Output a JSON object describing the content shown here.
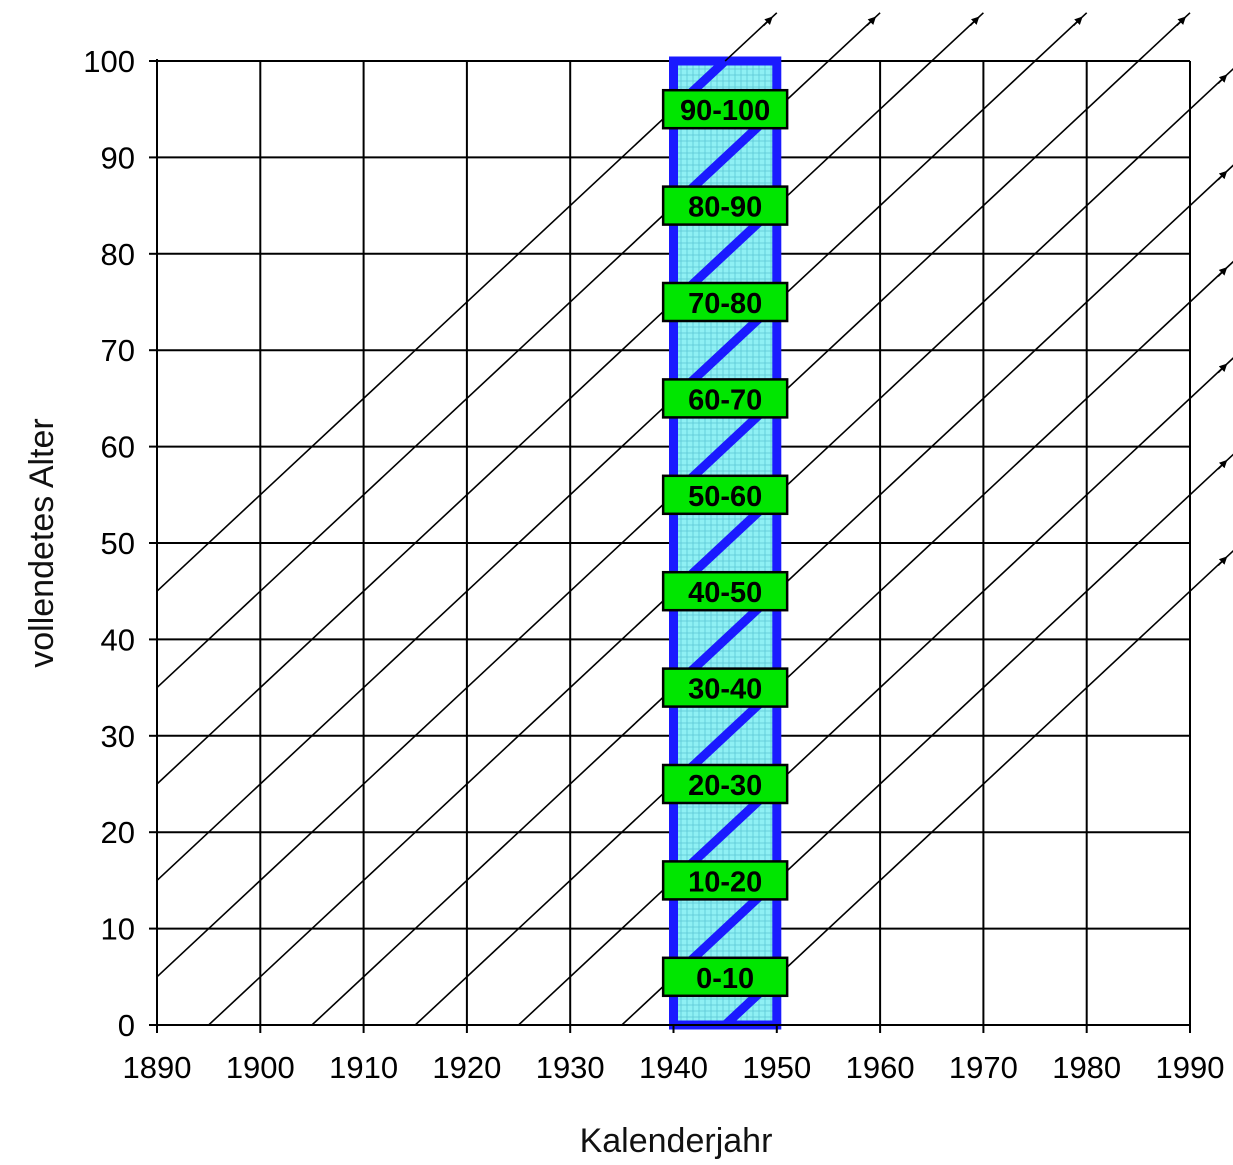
{
  "chart_data": {
    "type": "line",
    "title": "",
    "xlabel": "Kalenderjahr",
    "ylabel": "vollendetes Alter",
    "xlim": [
      1890,
      1990
    ],
    "ylim": [
      0,
      100
    ],
    "x_ticks": [
      "1890",
      "1900",
      "1910",
      "1920",
      "1930",
      "1940",
      "1950",
      "1960",
      "1970",
      "1980",
      "1990"
    ],
    "y_ticks": [
      "0",
      "10",
      "20",
      "30",
      "40",
      "50",
      "60",
      "70",
      "80",
      "90",
      "100"
    ],
    "grid": true,
    "lifelines": {
      "description_free": true,
      "birth_years": [
        1845,
        1855,
        1865,
        1875,
        1885,
        1895,
        1905,
        1915,
        1925,
        1935,
        1945
      ],
      "slope_years_per_year": 1,
      "arrowheads": true
    },
    "highlighted_period": {
      "x": [
        1940,
        1950
      ],
      "y": [
        0,
        100
      ],
      "fill_color": "#8ff0f4",
      "border_color": "#1a1aff"
    },
    "age_groups": [
      "0-10",
      "10-20",
      "20-30",
      "30-40",
      "40-50",
      "50-60",
      "60-70",
      "70-80",
      "80-90",
      "90-100"
    ],
    "age_group_centers": [
      5,
      15,
      25,
      35,
      45,
      55,
      65,
      75,
      85,
      95
    ],
    "age_group_color": "#00e600",
    "highlight_line_color": "#1a1aff",
    "line_color": "#000000"
  }
}
